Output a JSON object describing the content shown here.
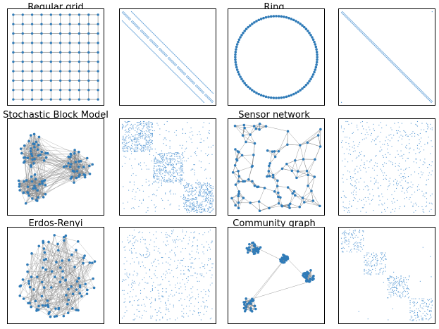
{
  "titles": {
    "regular_grid": "Regular grid",
    "ring": "Ring",
    "sbm": "Stochastic Block Model",
    "sensor": "Sensor network",
    "erdos": "Erdos-Renyi",
    "community": "Community graph"
  },
  "colors": {
    "node": "#2f7bb8",
    "edge": "#808080",
    "matrix": "#5b9bd5",
    "frame": "#000000"
  },
  "graphs": {
    "regular_grid": {
      "kind": "grid",
      "rows": 10,
      "cols": 10
    },
    "ring": {
      "kind": "ring",
      "nodes": 100
    },
    "sbm": {
      "kind": "blocks",
      "nodes": 100,
      "blocks": 3
    },
    "sensor": {
      "kind": "geometric",
      "nodes": 100
    },
    "erdos": {
      "kind": "random",
      "nodes": 100
    },
    "community": {
      "kind": "community",
      "nodes": 100,
      "communities": 4
    }
  }
}
